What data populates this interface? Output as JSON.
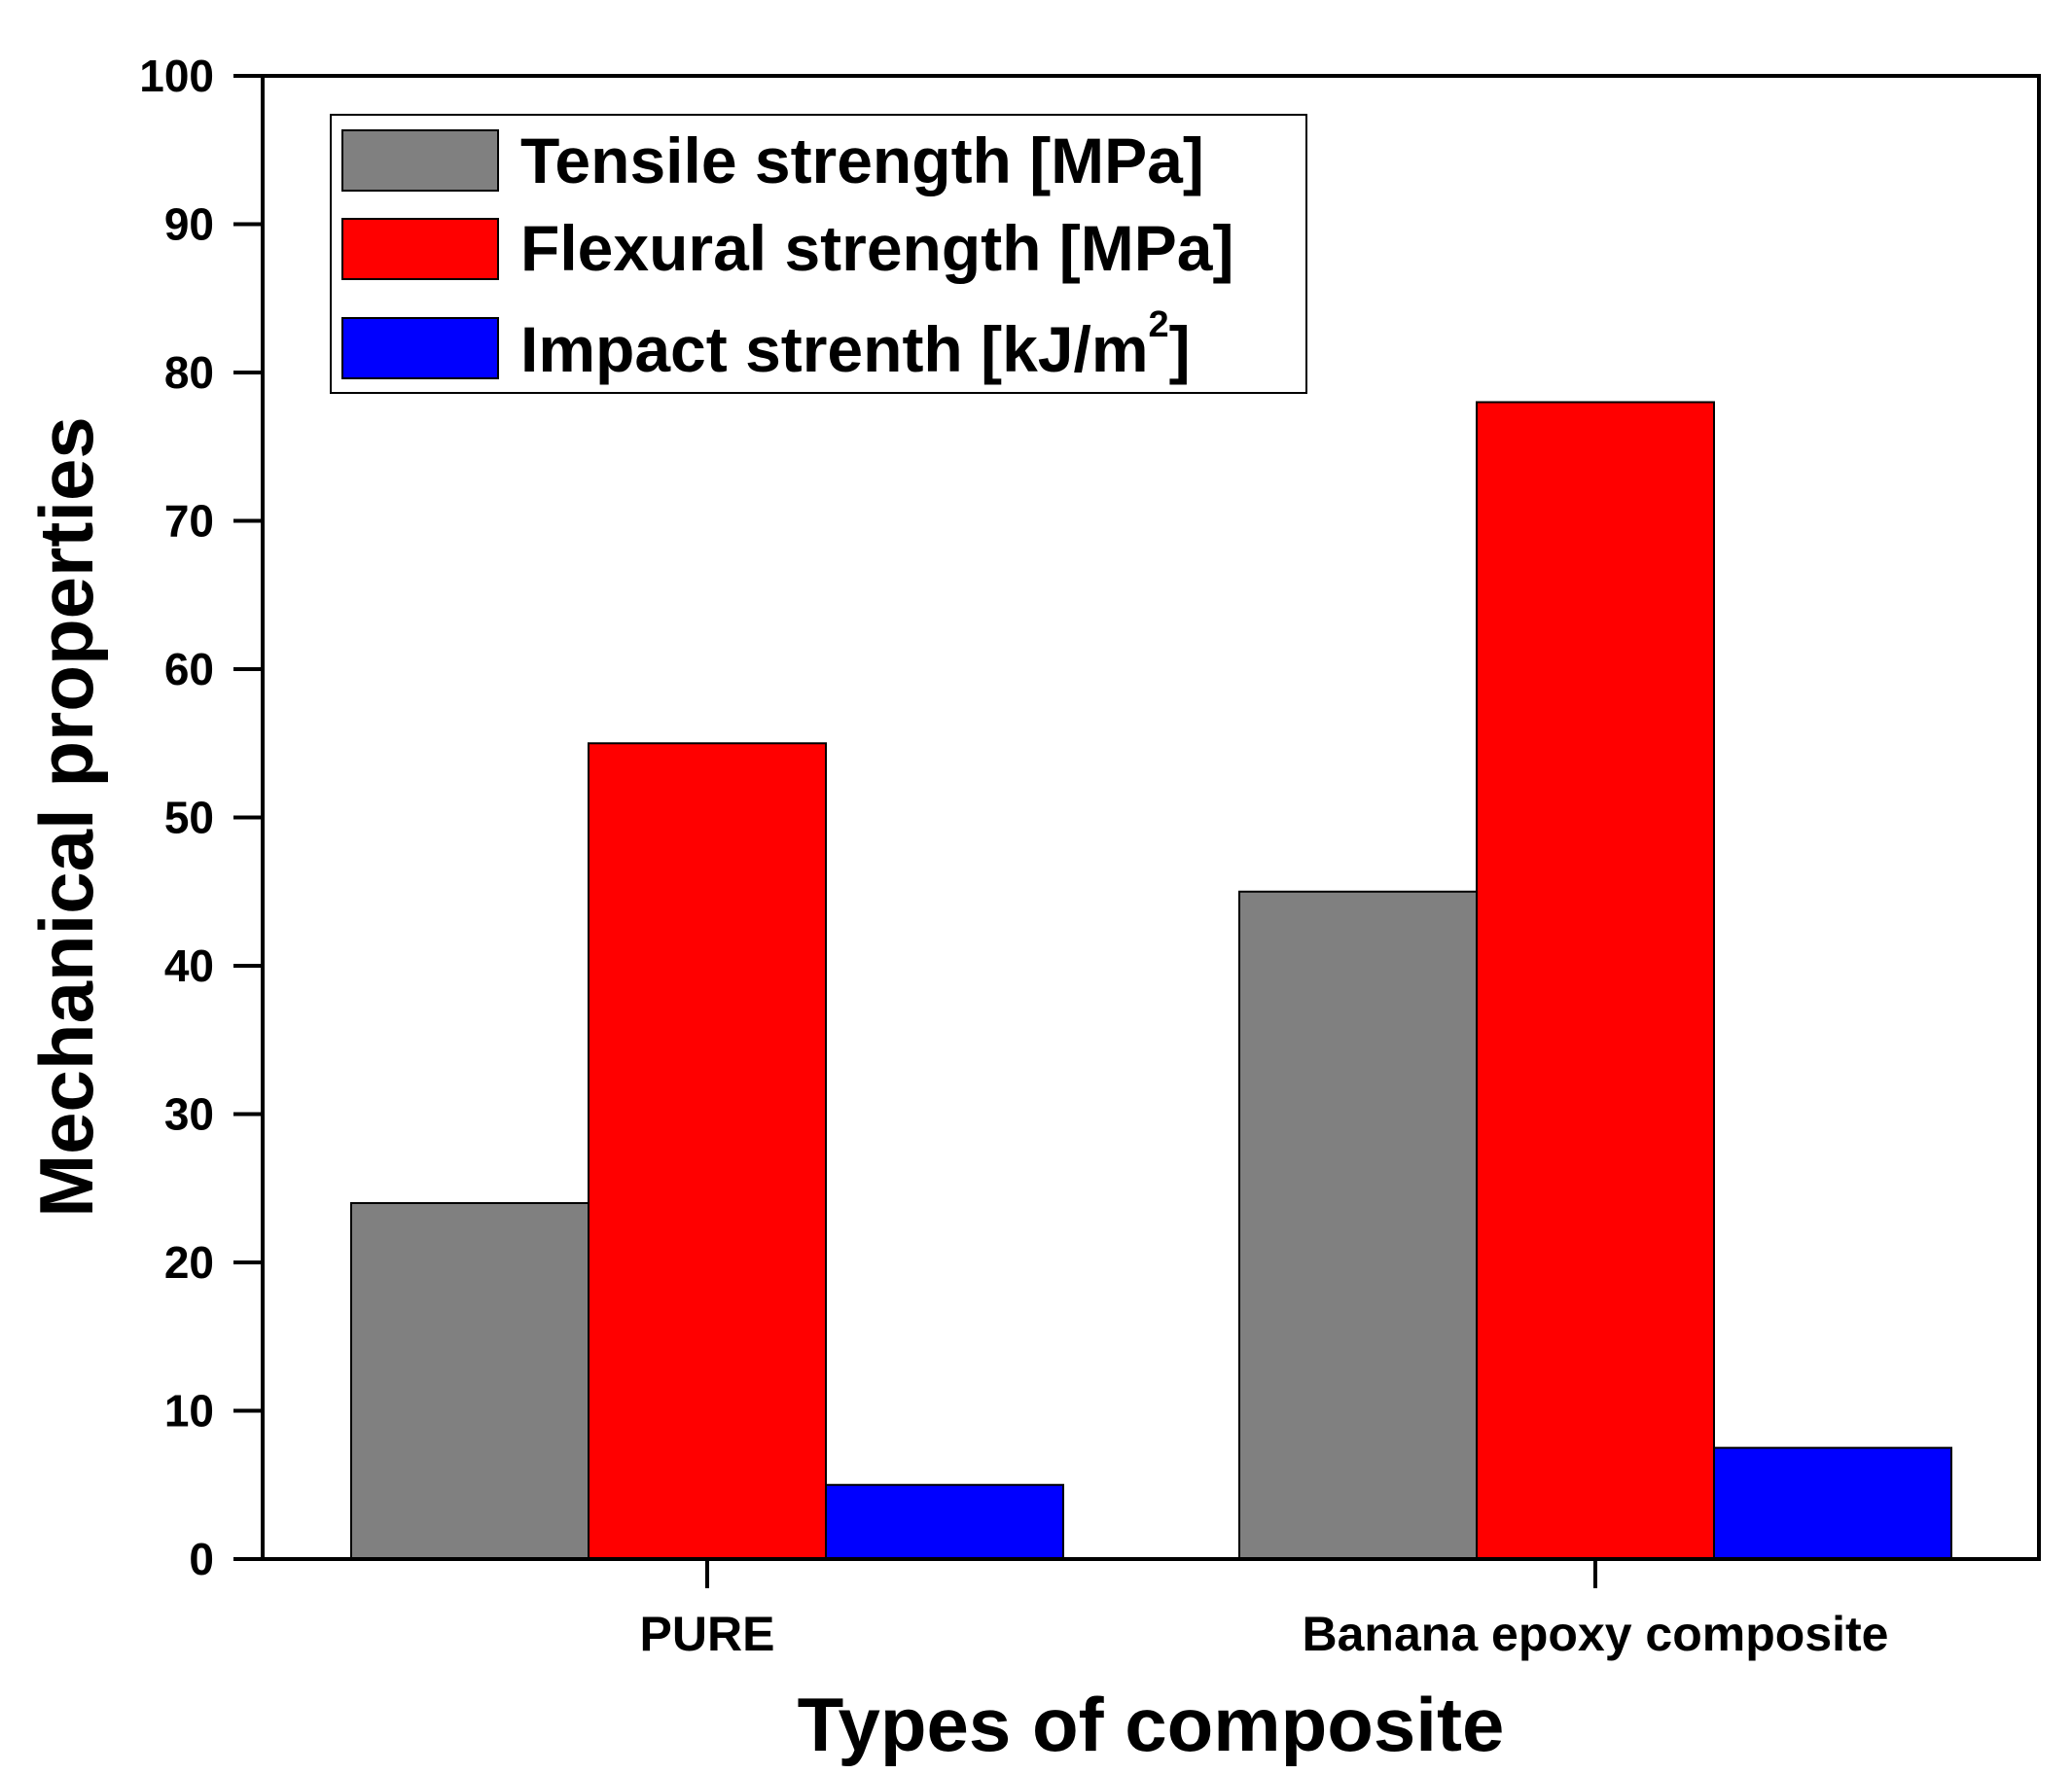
{
  "chart_data": {
    "type": "bar",
    "title": "",
    "xlabel": "Types of composite",
    "ylabel": "Mechanical properties",
    "ylim": [
      0,
      100
    ],
    "yticks": [
      0,
      10,
      20,
      30,
      40,
      50,
      60,
      70,
      80,
      90,
      100
    ],
    "ytick_labels": [
      "0",
      "10",
      "20",
      "30",
      "40",
      "50",
      "60",
      "70",
      "80",
      "90",
      "100"
    ],
    "categories": [
      "PURE",
      "Banana epoxy composite"
    ],
    "series": [
      {
        "name": "Tensile strength [MPa]",
        "values": [
          24,
          45
        ],
        "color": "#808080"
      },
      {
        "name": "Flexural strength [MPa]",
        "values": [
          55,
          78
        ],
        "color": "#ff0000"
      },
      {
        "name": "Impact strenth [kJ/m",
        "name_superscript": "2",
        "name_suffix": "]",
        "values": [
          5,
          7.5
        ],
        "color": "#0000ff"
      }
    ],
    "legend_position": "top-left",
    "grid": false
  }
}
